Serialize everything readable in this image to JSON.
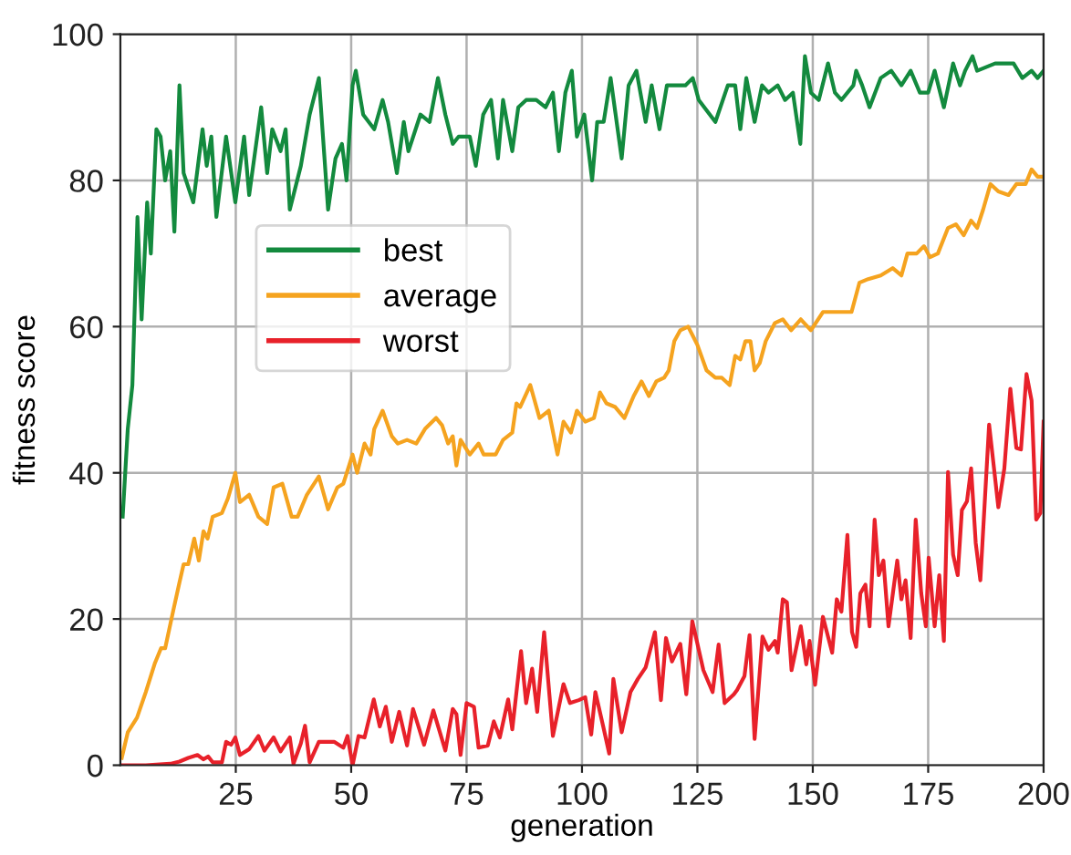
{
  "chart_data": {
    "type": "line",
    "xlabel": "generation",
    "ylabel": "fitness score",
    "xlim": [
      0,
      200
    ],
    "xticks": [
      25,
      50,
      75,
      100,
      125,
      150,
      175,
      200
    ],
    "ylim": [
      0,
      100
    ],
    "yticks": [
      0,
      20,
      40,
      60,
      80,
      100
    ],
    "grid": true,
    "legend": "top left",
    "marker": "none",
    "line_style": "solid",
    "series": [
      {
        "name": "best",
        "color": "#138a3e",
        "x": [
          0.5,
          1.6,
          2.6,
          3.7,
          4.6,
          5.8,
          6.6,
          7.8,
          8.7,
          9.7,
          10.8,
          11.7,
          12.8,
          13.7,
          15.8,
          17.8,
          18.7,
          19.7,
          20.8,
          22.9,
          24.9,
          26.8,
          27.9,
          30.5,
          31.8,
          32.9,
          34.7,
          35.8,
          36.7,
          39.1,
          41,
          43,
          45,
          46.6,
          48,
          49,
          50.3,
          51,
          52.6,
          55,
          56.8,
          58,
          59.9,
          61.4,
          62.4,
          65,
          67,
          68.8,
          70.4,
          72,
          73.3,
          75.7,
          77,
          78.6,
          80.3,
          81.8,
          82.9,
          84.9,
          86.2,
          87.9,
          90.1,
          92.1,
          93.7,
          95,
          96.4,
          97.8,
          98.9,
          100.5,
          102.2,
          103.3,
          104.7,
          106.2,
          108.6,
          110.1,
          111.8,
          113.8,
          115.1,
          116.8,
          118.4,
          120.8,
          122.4,
          124,
          125.3,
          128.9,
          131.6,
          133.2,
          134.3,
          135.6,
          137.4,
          139,
          140.4,
          142.4,
          144,
          145.7,
          147.3,
          148.3,
          149.6,
          151.3,
          153.3,
          154.8,
          156.2,
          158.8,
          159.4,
          160.7,
          162.3,
          164.7,
          167,
          169.2,
          171.2,
          173.2,
          175,
          176.4,
          178.4,
          180.4,
          181.9,
          183,
          184.6,
          185.6,
          189.5,
          193.5,
          195.4,
          197.4,
          198.7,
          200
        ],
        "values": [
          34,
          46,
          52,
          75,
          61,
          77,
          70,
          87,
          86,
          80,
          84,
          73,
          93,
          81,
          77,
          87,
          82,
          86,
          75,
          86,
          77,
          86,
          78,
          90,
          81,
          87,
          84,
          87,
          76,
          82,
          89,
          94,
          76,
          83,
          85,
          80,
          93,
          95,
          89,
          87,
          91,
          88,
          81,
          88,
          84,
          89,
          88,
          94,
          89,
          85,
          86,
          86,
          82,
          89,
          91,
          83,
          91,
          84,
          90,
          91,
          91,
          90,
          92,
          84,
          92,
          95,
          86,
          89,
          80,
          88,
          88,
          94,
          83,
          93,
          95,
          88,
          93,
          87,
          93,
          93,
          93,
          94,
          91,
          88,
          93,
          93,
          87,
          94,
          88,
          93,
          92,
          93,
          91,
          92,
          85,
          97,
          92,
          91,
          96,
          92,
          91,
          93,
          95,
          93,
          90,
          94,
          95,
          93,
          95,
          92,
          92,
          95,
          90,
          96,
          93,
          95,
          97,
          95,
          96,
          96,
          94,
          95,
          94,
          95
        ]
      },
      {
        "name": "average",
        "color": "#f5a31f",
        "x": [
          0.3,
          1.6,
          3.6,
          5.5,
          7.5,
          8.8,
          9.7,
          11.4,
          12.8,
          13.7,
          14.7,
          16,
          17,
          18,
          18.9,
          20,
          22,
          23.3,
          24.9,
          25.9,
          27.9,
          29.9,
          31.8,
          33.2,
          35.1,
          37.1,
          38.4,
          40.4,
          43,
          45,
          47,
          48.3,
          50.3,
          51.3,
          52.9,
          54.2,
          55,
          56.8,
          58.8,
          60.1,
          62.1,
          64.1,
          66,
          68.4,
          69.7,
          71,
          72,
          72.8,
          73.7,
          75.7,
          77.6,
          78.7,
          81.3,
          82.9,
          84.9,
          85.8,
          86.6,
          88.8,
          90.8,
          92.8,
          94.7,
          96,
          97.6,
          98.9,
          100.7,
          102.6,
          103.9,
          105.3,
          107.2,
          109.2,
          111.2,
          112.9,
          114.5,
          116.1,
          117.8,
          118.8,
          120,
          121.3,
          123,
          125,
          127,
          128.9,
          130.3,
          132,
          133.2,
          134.3,
          135.4,
          136.5,
          137.4,
          138.5,
          139.8,
          141.8,
          143.5,
          145.3,
          147.4,
          149.6,
          152.2,
          154.2,
          156.8,
          158.4,
          160.1,
          162,
          164.7,
          167.3,
          169.2,
          170.5,
          172.5,
          174.1,
          175.4,
          177.1,
          179.3,
          181,
          182.7,
          184.3,
          185.6,
          186.9,
          188.5,
          190.2,
          192.4,
          194.1,
          196.1,
          197.4,
          198.7,
          200
        ],
        "values": [
          1,
          4.5,
          6.5,
          10,
          14,
          16,
          16,
          21,
          25,
          27.5,
          27.5,
          31,
          28,
          32,
          31,
          34,
          34.5,
          36.5,
          40,
          36,
          37,
          34,
          33,
          38,
          38.5,
          34,
          34,
          37,
          39.5,
          35,
          38,
          38.5,
          42.5,
          40,
          44,
          42.5,
          46,
          48.5,
          45,
          44,
          44.5,
          44,
          46,
          47.5,
          46.5,
          44,
          45,
          41,
          44.5,
          42.5,
          44,
          42.5,
          42.5,
          44.5,
          45.5,
          49.5,
          49,
          52,
          47.5,
          48.5,
          42.5,
          47,
          45.5,
          48.5,
          47,
          47.5,
          51,
          49.5,
          49,
          47.5,
          50.5,
          52.5,
          50.5,
          52.5,
          53,
          54,
          58,
          59.5,
          60,
          57.5,
          54,
          53,
          53,
          52,
          56,
          55.5,
          58,
          58,
          54,
          55,
          58,
          60.5,
          61,
          59.5,
          61,
          59.5,
          62,
          62,
          62,
          62,
          66,
          66.5,
          67,
          68,
          67,
          70,
          70,
          71,
          69.5,
          70,
          73.5,
          74,
          72.5,
          74.5,
          73.5,
          76,
          79.5,
          78.5,
          78,
          79.5,
          79.5,
          81.5,
          80.5,
          80.5
        ]
      },
      {
        "name": "worst",
        "color": "#e8212a",
        "x": [
          0.3,
          5.5,
          10.8,
          12.8,
          14.7,
          16.7,
          18,
          19,
          20,
          22,
          22.9,
          24,
          24.9,
          25.9,
          27.9,
          29.9,
          31.2,
          33.2,
          34.7,
          36.7,
          37.5,
          39.1,
          40,
          41,
          43,
          46.3,
          48.3,
          49.2,
          50.3,
          51.6,
          52.9,
          54.9,
          56.2,
          57.5,
          58.8,
          60.4,
          62.1,
          63.4,
          65.8,
          67.8,
          70.4,
          72,
          72.8,
          73.7,
          75,
          76.6,
          77.6,
          79.6,
          80.9,
          82.2,
          84,
          84.9,
          86.8,
          87.9,
          89.2,
          90.3,
          91.8,
          93.7,
          96,
          97.4,
          99.3,
          100.7,
          102,
          102.9,
          104.6,
          105.9,
          106.8,
          108.6,
          110.5,
          112.1,
          113.8,
          115.8,
          117.1,
          118.2,
          119.5,
          121.3,
          122.6,
          123.9,
          126.3,
          128.3,
          129.6,
          130.9,
          132.9,
          133.6,
          135.2,
          136.3,
          137.4,
          139.1,
          140.4,
          141.8,
          142.4,
          143.5,
          144.4,
          145.4,
          147.4,
          148.6,
          149.3,
          150.5,
          152.2,
          154.2,
          155.2,
          156.2,
          157.5,
          158.5,
          159.4,
          160.3,
          161.4,
          162.3,
          163.4,
          164.3,
          165.3,
          166.4,
          168.3,
          169.2,
          170.1,
          171.2,
          172.3,
          173.5,
          174.5,
          175.1,
          176.4,
          177.4,
          178.4,
          179.3,
          180.4,
          181.4,
          182.3,
          183.4,
          184.3,
          185.3,
          186.3,
          188.2,
          190.2,
          191.5,
          192.8,
          194.1,
          195.1,
          196.3,
          197.4,
          198.4,
          199.3,
          200
        ],
        "values": [
          0,
          0,
          0.2,
          0.5,
          1,
          1.4,
          0.8,
          1.2,
          0.4,
          0.4,
          3.2,
          2.8,
          3.8,
          1.4,
          2.2,
          4,
          2,
          3.8,
          1.9,
          3.8,
          0.2,
          3,
          5.4,
          0.4,
          3.2,
          3.2,
          2.4,
          4,
          0,
          4,
          3.8,
          9,
          5.3,
          8,
          3.2,
          7.3,
          2.7,
          7.7,
          2.8,
          7.5,
          2,
          7.7,
          7,
          1.4,
          8.5,
          8,
          2.4,
          2.7,
          6,
          3.8,
          9,
          4.9,
          15.6,
          8.5,
          13.2,
          7.3,
          18.2,
          4,
          11.1,
          8.5,
          8.9,
          9.3,
          4.2,
          10,
          5.3,
          1.6,
          11.8,
          4.5,
          10,
          11.8,
          13.4,
          18.2,
          8.9,
          17.4,
          14.2,
          16.6,
          9.7,
          19.7,
          13,
          10,
          16.5,
          8.5,
          9.7,
          10.3,
          12.2,
          17.8,
          3.6,
          17.6,
          15.8,
          17,
          15.4,
          22.7,
          22.3,
          13,
          19,
          13.8,
          17,
          11,
          20.3,
          15.4,
          22.7,
          21,
          31.5,
          18.2,
          16.2,
          23.5,
          24.7,
          19,
          33.6,
          26,
          28,
          19,
          28,
          22.7,
          25.3,
          17.4,
          33.6,
          23.5,
          19,
          28.4,
          19,
          26,
          17,
          40.1,
          28.8,
          26,
          34.9,
          36.1,
          40.6,
          30.4,
          25.3,
          46.6,
          35.3,
          40.6,
          51.5,
          43.4,
          43.2,
          53.5,
          49.9,
          33.6,
          34.5,
          47
        ]
      }
    ]
  }
}
